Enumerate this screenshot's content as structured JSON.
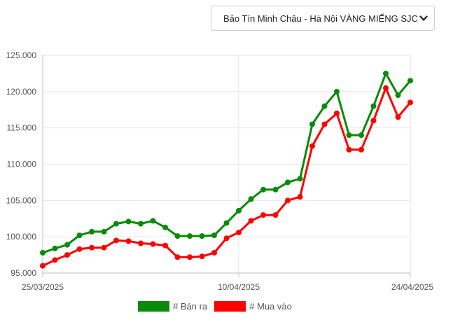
{
  "selector": {
    "value": "Bảo Tín Minh Châu - Hà Nội VÀNG MIẾNG SJC"
  },
  "legend": {
    "sell_label": "# Bán ra",
    "buy_label": "# Mua vào"
  },
  "colors": {
    "sell": "#0a8a0a",
    "buy": "#ff0000",
    "grid": "#e6e6e6",
    "axis": "#bdbdbd"
  },
  "chart_data": {
    "type": "line",
    "title": "",
    "xlabel": "",
    "ylabel": "",
    "ylim": [
      95000,
      125000
    ],
    "yticks": [
      "95.000",
      "100.000",
      "105.000",
      "110.000",
      "115.000",
      "120.000",
      "125.000"
    ],
    "ytick_values": [
      95000,
      100000,
      105000,
      110000,
      115000,
      120000,
      125000
    ],
    "xticks": [
      {
        "index": 0,
        "label": "25/03/2025"
      },
      {
        "index": 16,
        "label": "10/04/2025"
      },
      {
        "index": 30,
        "label": "24/04/2025"
      }
    ],
    "grid": true,
    "legend_position": "bottom",
    "series": [
      {
        "name": "# Bán ra",
        "values": [
          97800,
          98400,
          98900,
          100200,
          100700,
          100700,
          101800,
          102100,
          101800,
          102200,
          101300,
          100100,
          100100,
          100100,
          100200,
          101900,
          103600,
          105200,
          106500,
          106500,
          107500,
          108000,
          115500,
          118000,
          120000,
          114000,
          114000,
          118000,
          122500,
          119500,
          121500
        ]
      },
      {
        "name": "# Mua vào",
        "values": [
          96000,
          96800,
          97500,
          98300,
          98500,
          98500,
          99500,
          99400,
          99100,
          99000,
          98800,
          97200,
          97200,
          97300,
          97800,
          99800,
          100600,
          102200,
          103000,
          103000,
          105000,
          105500,
          112500,
          115500,
          117000,
          112000,
          112000,
          116000,
          120500,
          116500,
          118500
        ]
      }
    ]
  }
}
